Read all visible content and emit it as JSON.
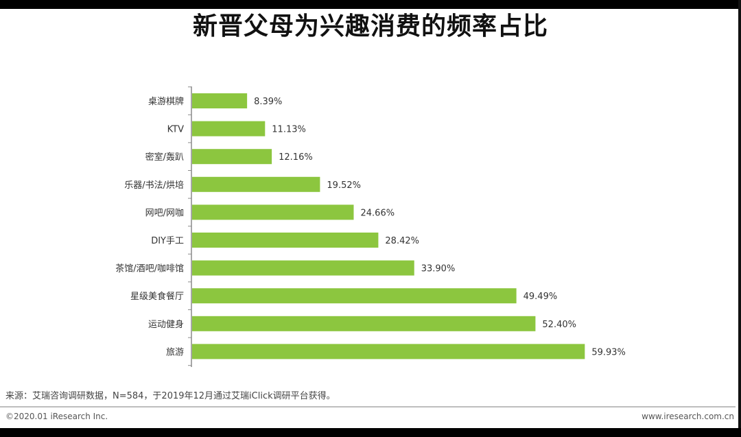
{
  "header": {
    "title": "新晋父母为兴趣消费的频率占比"
  },
  "chart_data": {
    "type": "bar",
    "orientation": "horizontal",
    "title": "新晋父母为兴趣消费的频率占比",
    "categories": [
      "桌游棋牌",
      "KTV",
      "密室/轰趴",
      "乐器/书法/烘培",
      "网吧/网咖",
      "DIY手工",
      "茶馆/酒吧/咖啡馆",
      "星级美食餐厅",
      "运动健身",
      "旅游"
    ],
    "values": [
      8.39,
      11.13,
      12.16,
      19.52,
      24.66,
      28.42,
      33.9,
      49.49,
      52.4,
      59.93
    ],
    "value_labels": [
      "8.39%",
      "11.13%",
      "12.16%",
      "19.52%",
      "24.66%",
      "28.42%",
      "33.90%",
      "49.49%",
      "52.40%",
      "59.93%"
    ],
    "unit": "%",
    "xlim": [
      0,
      100
    ],
    "grid": false,
    "bar_color": "#8cc63f"
  },
  "footer": {
    "source": "来源：艾瑞咨询调研数据，N=584，于2019年12月通过艾瑞iClick调研平台获得。",
    "copyright": "©2020.01 iResearch Inc.",
    "website": "www.iresearch.com.cn"
  }
}
